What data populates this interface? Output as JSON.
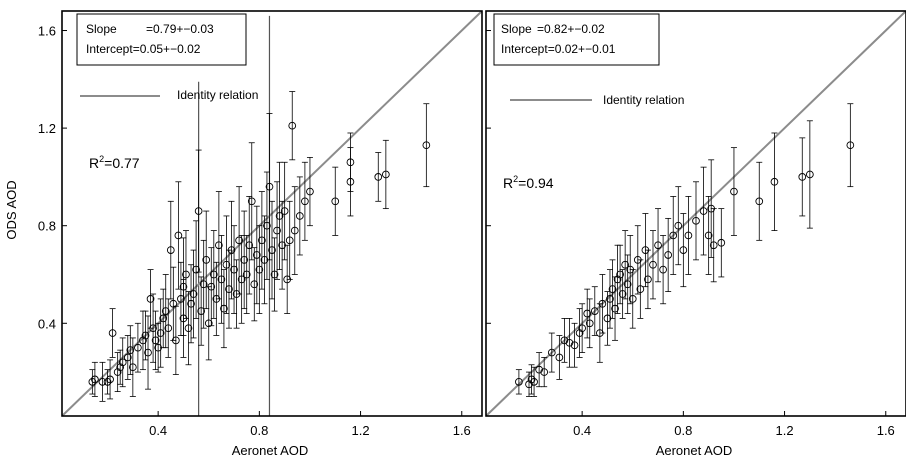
{
  "figure": {
    "ylabel": "ODS AOD",
    "xlabel": "Aeronet AOD"
  },
  "colors": {
    "identity_line": "#8c8c8c",
    "points": "#000000",
    "axes": "#000000"
  },
  "chart_data": [
    {
      "type": "scatter",
      "xlabel": "Aeronet AOD",
      "ylabel": "ODS AOD",
      "xlim": [
        0.02,
        1.68
      ],
      "ylim": [
        0.02,
        1.68
      ],
      "xticks": [
        0.4,
        0.8,
        1.2,
        1.6
      ],
      "yticks": [
        0.4,
        0.8,
        1.2,
        1.6
      ],
      "xtick_labels": [
        "0.4",
        "0.8",
        "1.2",
        "1.6"
      ],
      "ytick_labels": [
        "0.4",
        "0.8",
        "1.2",
        "1.6"
      ],
      "grid": false,
      "stats": {
        "slope_label": "Slope",
        "slope_value": "=0.79+−0.03",
        "intercept_label": "Intercept=0.05+−0.02",
        "r2_text": "R",
        "r2_sup": "2",
        "r2_value": "=0.77"
      },
      "identity_label": "Identity relation",
      "points": [
        [
          0.14,
          0.16,
          0.05
        ],
        [
          0.15,
          0.17,
          0.07
        ],
        [
          0.18,
          0.16,
          0.08
        ],
        [
          0.2,
          0.16,
          0.05
        ],
        [
          0.21,
          0.17,
          0.08
        ],
        [
          0.22,
          0.36,
          0.1
        ],
        [
          0.24,
          0.2,
          0.08
        ],
        [
          0.25,
          0.22,
          0.07
        ],
        [
          0.26,
          0.24,
          0.1
        ],
        [
          0.28,
          0.26,
          0.09
        ],
        [
          0.29,
          0.29,
          0.1
        ],
        [
          0.3,
          0.22,
          0.12
        ],
        [
          0.32,
          0.3,
          0.1
        ],
        [
          0.34,
          0.33,
          0.12
        ],
        [
          0.35,
          0.35,
          0.1
        ],
        [
          0.36,
          0.28,
          0.15
        ],
        [
          0.37,
          0.5,
          0.12
        ],
        [
          0.38,
          0.38,
          0.14
        ],
        [
          0.39,
          0.33,
          0.12
        ],
        [
          0.4,
          0.3,
          0.1
        ],
        [
          0.41,
          0.36,
          0.14
        ],
        [
          0.42,
          0.42,
          0.12
        ],
        [
          0.43,
          0.45,
          0.15
        ],
        [
          0.44,
          0.38,
          0.12
        ],
        [
          0.45,
          0.7,
          0.2
        ],
        [
          0.46,
          0.48,
          0.15
        ],
        [
          0.47,
          0.33,
          0.14
        ],
        [
          0.48,
          0.76,
          0.22
        ],
        [
          0.49,
          0.5,
          0.15
        ],
        [
          0.5,
          0.42,
          0.16
        ],
        [
          0.5,
          0.55,
          0.2
        ],
        [
          0.51,
          0.6,
          0.18
        ],
        [
          0.52,
          0.38,
          0.15
        ],
        [
          0.53,
          0.48,
          0.16
        ],
        [
          0.54,
          0.52,
          0.18
        ],
        [
          0.55,
          0.62,
          0.2
        ],
        [
          0.56,
          0.86,
          0.25
        ],
        [
          0.57,
          0.45,
          0.14
        ],
        [
          0.58,
          0.56,
          0.18
        ],
        [
          0.59,
          0.66,
          0.2
        ],
        [
          0.6,
          0.4,
          0.15
        ],
        [
          0.61,
          0.55,
          0.16
        ],
        [
          0.62,
          0.6,
          0.18
        ],
        [
          0.63,
          0.5,
          0.15
        ],
        [
          0.64,
          0.72,
          0.22
        ],
        [
          0.65,
          0.58,
          0.18
        ],
        [
          0.66,
          0.46,
          0.16
        ],
        [
          0.67,
          0.64,
          0.2
        ],
        [
          0.68,
          0.54,
          0.16
        ],
        [
          0.69,
          0.7,
          0.2
        ],
        [
          0.7,
          0.62,
          0.18
        ],
        [
          0.71,
          0.52,
          0.14
        ],
        [
          0.72,
          0.74,
          0.22
        ],
        [
          0.73,
          0.58,
          0.18
        ],
        [
          0.74,
          0.66,
          0.2
        ],
        [
          0.75,
          0.6,
          0.16
        ],
        [
          0.76,
          0.72,
          0.2
        ],
        [
          0.77,
          0.9,
          0.24
        ],
        [
          0.78,
          0.56,
          0.15
        ],
        [
          0.79,
          0.68,
          0.2
        ],
        [
          0.8,
          0.62,
          0.18
        ],
        [
          0.81,
          0.74,
          0.2
        ],
        [
          0.82,
          0.66,
          0.18
        ],
        [
          0.83,
          0.8,
          0.22
        ],
        [
          0.84,
          0.96,
          0.3
        ],
        [
          0.85,
          0.7,
          0.2
        ],
        [
          0.86,
          0.6,
          0.15
        ],
        [
          0.87,
          0.78,
          0.2
        ],
        [
          0.88,
          0.84,
          0.22
        ],
        [
          0.89,
          0.72,
          0.18
        ],
        [
          0.9,
          0.86,
          0.2
        ],
        [
          0.91,
          0.58,
          0.14
        ],
        [
          0.92,
          0.74,
          0.16
        ],
        [
          0.93,
          1.21,
          0.14
        ],
        [
          0.94,
          0.78,
          0.18
        ],
        [
          0.96,
          0.84,
          0.16
        ],
        [
          0.98,
          0.9,
          0.16
        ],
        [
          1.0,
          0.94,
          0.14
        ],
        [
          1.1,
          0.9,
          0.14
        ],
        [
          1.16,
          0.98,
          0.14
        ],
        [
          1.16,
          1.06,
          0.12
        ],
        [
          1.27,
          1.0,
          0.1
        ],
        [
          1.3,
          1.01,
          0.14
        ],
        [
          1.46,
          1.13,
          0.17
        ]
      ]
    },
    {
      "type": "scatter",
      "xlabel": "Aeronet AOD",
      "ylabel": "",
      "xlim": [
        0.02,
        1.68
      ],
      "ylim": [
        0.02,
        1.68
      ],
      "xticks": [
        0.4,
        0.8,
        1.2,
        1.6
      ],
      "yticks": [
        0.4,
        0.8,
        1.2,
        1.6
      ],
      "xtick_labels": [
        "0.4",
        "0.8",
        "1.2",
        "1.6"
      ],
      "grid": false,
      "stats": {
        "slope_label": "Slope",
        "slope_value": "=0.82+−0.02",
        "intercept_label": "Intercept=0.02+−0.01",
        "r2_text": "R",
        "r2_sup": "2",
        "r2_value": "=0.94"
      },
      "identity_label": "Identity relation",
      "points": [
        [
          0.15,
          0.16,
          0.05
        ],
        [
          0.19,
          0.15,
          0.05
        ],
        [
          0.2,
          0.17,
          0.06
        ],
        [
          0.21,
          0.16,
          0.06
        ],
        [
          0.23,
          0.21,
          0.07
        ],
        [
          0.25,
          0.2,
          0.06
        ],
        [
          0.28,
          0.28,
          0.08
        ],
        [
          0.31,
          0.26,
          0.09
        ],
        [
          0.33,
          0.33,
          0.09
        ],
        [
          0.35,
          0.32,
          0.1
        ],
        [
          0.37,
          0.31,
          0.09
        ],
        [
          0.39,
          0.36,
          0.1
        ],
        [
          0.4,
          0.38,
          0.1
        ],
        [
          0.42,
          0.44,
          0.1
        ],
        [
          0.43,
          0.4,
          0.1
        ],
        [
          0.45,
          0.45,
          0.1
        ],
        [
          0.47,
          0.36,
          0.12
        ],
        [
          0.48,
          0.48,
          0.12
        ],
        [
          0.5,
          0.42,
          0.11
        ],
        [
          0.51,
          0.5,
          0.12
        ],
        [
          0.52,
          0.54,
          0.12
        ],
        [
          0.53,
          0.46,
          0.13
        ],
        [
          0.54,
          0.58,
          0.14
        ],
        [
          0.55,
          0.6,
          0.12
        ],
        [
          0.56,
          0.52,
          0.1
        ],
        [
          0.57,
          0.64,
          0.14
        ],
        [
          0.58,
          0.56,
          0.12
        ],
        [
          0.59,
          0.62,
          0.14
        ],
        [
          0.6,
          0.5,
          0.12
        ],
        [
          0.62,
          0.66,
          0.14
        ],
        [
          0.63,
          0.54,
          0.12
        ],
        [
          0.65,
          0.7,
          0.15
        ],
        [
          0.66,
          0.58,
          0.12
        ],
        [
          0.68,
          0.64,
          0.14
        ],
        [
          0.7,
          0.72,
          0.15
        ],
        [
          0.72,
          0.62,
          0.14
        ],
        [
          0.74,
          0.68,
          0.15
        ],
        [
          0.76,
          0.76,
          0.16
        ],
        [
          0.78,
          0.8,
          0.16
        ],
        [
          0.8,
          0.7,
          0.15
        ],
        [
          0.82,
          0.76,
          0.16
        ],
        [
          0.85,
          0.82,
          0.16
        ],
        [
          0.88,
          0.86,
          0.18
        ],
        [
          0.9,
          0.76,
          0.16
        ],
        [
          0.91,
          0.87,
          0.2
        ],
        [
          0.92,
          0.72,
          0.15
        ],
        [
          0.95,
          0.73,
          0.14
        ],
        [
          1.0,
          0.94,
          0.18
        ],
        [
          1.1,
          0.9,
          0.16
        ],
        [
          1.16,
          0.98,
          0.2
        ],
        [
          1.27,
          1.0,
          0.16
        ],
        [
          1.3,
          1.01,
          0.22
        ],
        [
          1.46,
          1.13,
          0.17
        ]
      ]
    }
  ]
}
